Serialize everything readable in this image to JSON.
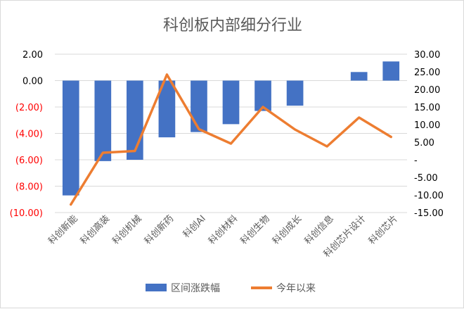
{
  "chart_data": {
    "type": "bar",
    "title": "科创板内部细分行业",
    "categories": [
      "科创新能",
      "科创高装",
      "科创机械",
      "科创新药",
      "科创AI",
      "科创材料",
      "科创生物",
      "科创成长",
      "科创信息",
      "科创芯片设计",
      "科创芯片"
    ],
    "series": [
      {
        "name": "区间涨跌幅",
        "type": "bar",
        "axis": "left",
        "color": "#4472c4",
        "values": [
          -8.7,
          -6.1,
          -6.0,
          -4.3,
          -3.9,
          -3.3,
          -2.3,
          -1.9,
          0.0,
          0.65,
          1.45
        ]
      },
      {
        "name": "今年以来",
        "type": "line",
        "axis": "right",
        "color": "#ed7d31",
        "values": [
          -12.7,
          2.0,
          2.5,
          24.2,
          8.7,
          4.6,
          15.0,
          8.6,
          3.8,
          12.0,
          6.5
        ]
      }
    ],
    "y_left": {
      "ylim": [
        -10,
        2
      ],
      "ticks": [
        {
          "v": 2,
          "label": "2.00",
          "color": "#000000"
        },
        {
          "v": 0,
          "label": "0.00",
          "color": "#000000"
        },
        {
          "v": -2,
          "label": "(2.00)",
          "color": "#ff0000"
        },
        {
          "v": -4,
          "label": "(4.00)",
          "color": "#ff0000"
        },
        {
          "v": -6,
          "label": "(6.00)",
          "color": "#ff0000"
        },
        {
          "v": -8,
          "label": "(8.00)",
          "color": "#ff0000"
        },
        {
          "v": -10,
          "label": "(10.00)",
          "color": "#ff0000"
        }
      ]
    },
    "y_right": {
      "ylim": [
        -15,
        30
      ],
      "ticks": [
        {
          "v": 30,
          "label": "30.00"
        },
        {
          "v": 25,
          "label": "25.00"
        },
        {
          "v": 20,
          "label": "20.00"
        },
        {
          "v": 15,
          "label": "15.00"
        },
        {
          "v": 10,
          "label": "10.00"
        },
        {
          "v": 5,
          "label": "5.00"
        },
        {
          "v": 0,
          "label": "-"
        },
        {
          "v": -5,
          "label": "-5.00"
        },
        {
          "v": -10,
          "label": "-10.00"
        },
        {
          "v": -15,
          "label": "-15.00"
        }
      ]
    },
    "grid": true,
    "legend": "bottom"
  }
}
